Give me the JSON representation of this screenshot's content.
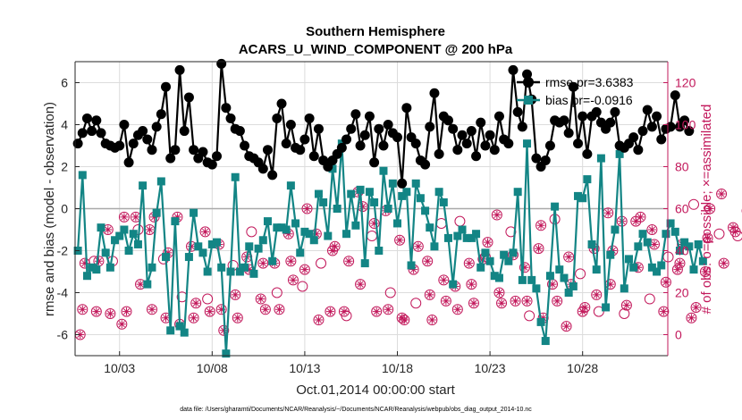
{
  "chart_data": {
    "type": "line",
    "title": "Southern Hemisphere",
    "subtitle": "ACARS_U_WIND_COMPONENT @ 200 hPa",
    "xlabel": "Oct.01,2014 00:00:00 start",
    "ylabel": "rmse and bias (model - observation)",
    "ylabel_right": "# of obs: o=possible; ×=assimilated",
    "xticks": [
      "10/03",
      "10/08",
      "10/13",
      "10/18",
      "10/23",
      "10/28"
    ],
    "xtick_days": [
      3,
      8,
      13,
      18,
      23,
      28
    ],
    "xlim": [
      0.6,
      32.6
    ],
    "ylim": [
      -7,
      7
    ],
    "yticks": [
      -6,
      -4,
      -2,
      0,
      2,
      4,
      6
    ],
    "ylim_right": [
      -10,
      130
    ],
    "yticks_right": [
      0,
      20,
      40,
      60,
      80,
      100,
      120
    ],
    "grid": true,
    "legend_position": "top-right",
    "footnote": "data file: /Users/gharamti/Documents/NCAR/Reanalysis/~/Documents/NCAR/Reanalysis/webpub/obs_diag_output_2014-10.nc",
    "colors": {
      "rmse": "#000000",
      "bias": "#138585",
      "obs": "#c2185b"
    },
    "series": [
      {
        "name": "rmse pr=3.6383",
        "values": [
          3.1,
          3.6,
          4.3,
          3.7,
          4.2,
          3.6,
          3.1,
          3.0,
          2.9,
          3.0,
          4.0,
          2.2,
          3.1,
          3.5,
          3.7,
          3.3,
          2.8,
          3.9,
          4.5,
          5.8,
          2.4,
          2.8,
          6.6,
          3.7,
          5.3,
          2.8,
          2.4,
          2.7,
          2.2,
          2.1,
          2.5,
          6.9,
          4.8,
          4.3,
          3.8,
          3.7,
          3.0,
          2.5,
          2.4,
          2.2,
          1.9,
          2.8,
          1.6,
          4.3,
          5.0,
          3.1,
          4.0,
          2.9,
          2.8,
          3.3,
          4.3,
          2.5,
          3.8,
          2.3,
          2.0,
          2.3,
          2.6,
          2.9,
          3.3,
          3.8,
          4.5,
          3.0,
          3.5,
          4.4,
          2.2,
          3.8,
          3.0,
          4.0,
          3.6,
          3.4,
          1.2,
          4.8,
          3.4,
          3.1,
          2.3,
          2.1,
          3.9,
          5.5,
          2.6,
          4.4,
          4.2,
          3.8,
          2.8,
          3.5,
          3.1,
          3.7,
          2.5,
          4.1,
          3.0,
          3.5,
          2.8,
          4.4,
          3.3,
          3.1,
          6.6,
          4.6,
          3.9,
          6.4,
          5.2,
          2.4,
          2.0,
          2.3,
          3.0,
          4.2,
          4.1,
          4.2,
          3.6,
          5.8,
          3.1,
          4.4,
          2.6,
          4.4,
          4.6,
          4.1,
          3.8,
          4.1,
          4.6,
          3.0,
          2.9,
          3.1,
          3.4,
          2.8,
          3.7,
          4.7,
          3.9,
          4.4,
          3.3,
          3.8,
          3.9,
          5.4,
          3.9,
          4.2,
          3.7
        ],
        "style": "line-circle"
      },
      {
        "name": "bias pr=-0.0916",
        "values": [
          -2.0,
          1.6,
          -3.2,
          -2.8,
          -2.9,
          -0.9,
          -2.1,
          -2.8,
          -1.5,
          -1.3,
          -1.0,
          -2.0,
          -1.2,
          -1.7,
          1.1,
          -3.6,
          -2.8,
          -0.2,
          1.3,
          -2.3,
          -5.8,
          -0.6,
          -5.6,
          -5.9,
          -2.3,
          -0.2,
          -1.8,
          -2.1,
          -3.0,
          -1.7,
          -1.6,
          -2.8,
          -6.9,
          -3.0,
          1.5,
          -3.0,
          -2.8,
          -1.8,
          -3.1,
          -1.9,
          -1.5,
          -0.6,
          -2.5,
          -0.9,
          -0.9,
          -1.0,
          1.1,
          -0.7,
          -2.1,
          -1.1,
          -1.2,
          -1.5,
          0.7,
          0.3,
          -1.3,
          1.9,
          0.0,
          3.1,
          -1.2,
          0.7,
          -0.8,
          0.9,
          -2.6,
          0.8,
          0.3,
          -2.0,
          1.8,
          0.0,
          1.2,
          -0.7,
          0.6,
          0.8,
          -2.7,
          1.2,
          0.5,
          -0.1,
          -0.9,
          -1.8,
          0.8,
          0.3,
          -1.4,
          -3.6,
          -1.3,
          -1.0,
          -1.4,
          -1.4,
          -1.2,
          -2.8,
          -2.1,
          -2.5,
          -3.2,
          -3.3,
          -2.2,
          -2.5,
          -2.1,
          0.8,
          -3.4,
          3.1,
          -3.4,
          -3.8,
          -5.4,
          -6.3,
          -3.2,
          0.1,
          -2.9,
          -3.3,
          -4.0,
          -3.7,
          0.6,
          0.5,
          1.4,
          -1.7,
          -2.9,
          2.4,
          -4.7,
          -2.2,
          -1.0,
          2.6,
          -3.8,
          -2.4,
          -2.8,
          -1.8,
          -1.2,
          -1.6,
          -2.8,
          -3.0,
          -2.7,
          -1.2,
          -0.7,
          -1.1,
          -2.0,
          -1.6,
          -1.8,
          -2.9,
          -1.7,
          -2.5
        ],
        "style": "line-square"
      },
      {
        "name": "obs_possible",
        "values": [
          0,
          12,
          34,
          35,
          11,
          35,
          50,
          10,
          35,
          5,
          56,
          11,
          56,
          50,
          24,
          50,
          12,
          56,
          36,
          8,
          39,
          56,
          5,
          18,
          42,
          8,
          15,
          49,
          17,
          11,
          43,
          12,
          2,
          33,
          19,
          8,
          37,
          31,
          49,
          17,
          34,
          12,
          34,
          20,
          12,
          48,
          35,
          26,
          23,
          31,
          60,
          48,
          7,
          34,
          11,
          40,
          42,
          11,
          9,
          35,
          68,
          24,
          61,
          47,
          53,
          11,
          59,
          12,
          20,
          45,
          8,
          7,
          31,
          15,
          42,
          35,
          19,
          7,
          53,
          26,
          16,
          23,
          12,
          54,
          34,
          24,
          15,
          36,
          37,
          44,
          57,
          20,
          15,
          49,
          38,
          16,
          32,
          16,
          9,
          41,
          52,
          8,
          24,
          55,
          16,
          4,
          37,
          24,
          29,
          11,
          13,
          41,
          19,
          11,
          58,
          24,
          40,
          54,
          10,
          14,
          54,
          32,
          56,
          17,
          50,
          43,
          11,
          25,
          37,
          31,
          34,
          43,
          8,
          62,
          13,
          30,
          46,
          60,
          48,
          67,
          34,
          51,
          49,
          47,
          59,
          21,
          64,
          28,
          23,
          53,
          4
        ],
        "style": "circle"
      }
    ]
  }
}
